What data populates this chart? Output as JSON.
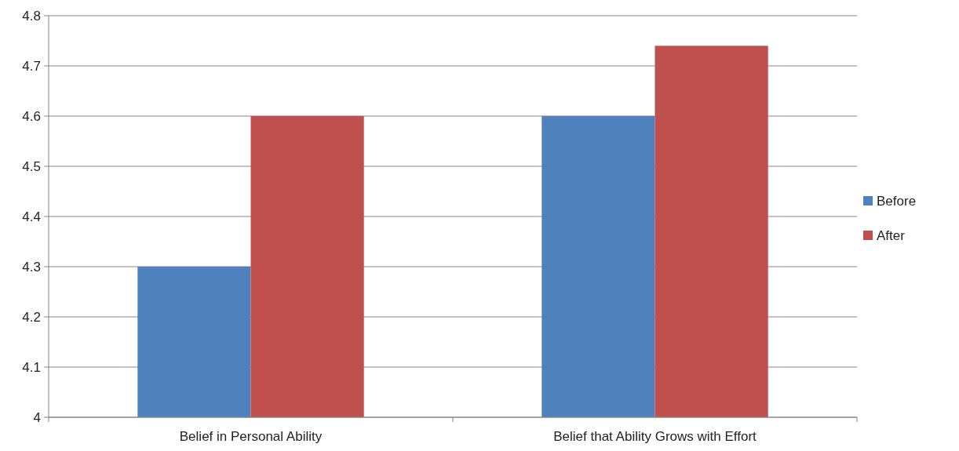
{
  "chart_data": {
    "type": "bar",
    "categories": [
      "Belief in Personal Ability",
      "Belief that Ability Grows with Effort"
    ],
    "series": [
      {
        "name": "Before",
        "color": "#4f81bd",
        "values": [
          4.3,
          4.6
        ]
      },
      {
        "name": "After",
        "color": "#c0504d",
        "values": [
          4.6,
          4.74
        ]
      }
    ],
    "ylim": [
      4,
      4.8
    ],
    "yticks": [
      4,
      4.1,
      4.2,
      4.3,
      4.4,
      4.5,
      4.6,
      4.7,
      4.8
    ],
    "grid": "y",
    "legend": "right"
  }
}
